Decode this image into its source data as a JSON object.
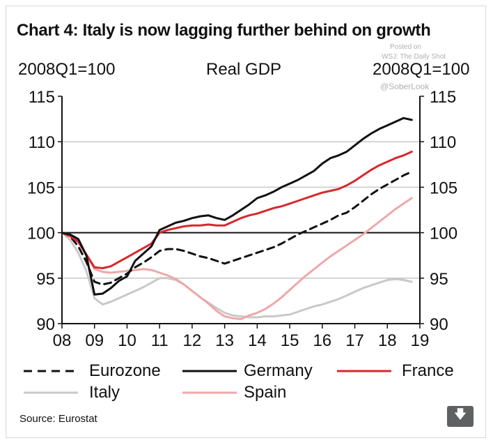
{
  "header": {
    "title": "Chart 4: Italy is now lagging further behind on growth",
    "unit_left": "2008Q1=100",
    "unit_right": "2008Q1=100",
    "chart_label": "Real GDP"
  },
  "watermark": {
    "line1": "Posted on",
    "line2": "WSJ: The Daily Shot",
    "line3": "@SoberLook"
  },
  "footer": {
    "source": "Source: Eurostat",
    "download_icon": "download-icon"
  },
  "chart_data": {
    "type": "line",
    "title": "Real GDP",
    "xlabel": "",
    "ylabel": "2008Q1=100",
    "xlim": [
      2008,
      2019
    ],
    "ylim": [
      90,
      115
    ],
    "x_ticks": [
      "08",
      "09",
      "10",
      "11",
      "12",
      "13",
      "14",
      "15",
      "16",
      "17",
      "18",
      "19"
    ],
    "y_ticks": [
      "90",
      "95",
      "100",
      "105",
      "110",
      "115"
    ],
    "reference_line": 100,
    "grid": true,
    "legend": "bottom",
    "x": [
      2008.0,
      2008.25,
      2008.5,
      2008.75,
      2009.0,
      2009.25,
      2009.5,
      2009.75,
      2010.0,
      2010.25,
      2010.5,
      2010.75,
      2011.0,
      2011.25,
      2011.5,
      2011.75,
      2012.0,
      2012.25,
      2012.5,
      2012.75,
      2013.0,
      2013.25,
      2013.5,
      2013.75,
      2014.0,
      2014.25,
      2014.5,
      2014.75,
      2015.0,
      2015.25,
      2015.5,
      2015.75,
      2016.0,
      2016.25,
      2016.5,
      2016.75,
      2017.0,
      2017.25,
      2017.5,
      2017.75,
      2018.0,
      2018.25,
      2018.5,
      2018.75
    ],
    "series": [
      {
        "name": "Eurozone",
        "color": "#111111",
        "dash": "dashed",
        "values": [
          100.0,
          99.6,
          98.5,
          96.8,
          94.6,
          94.3,
          94.5,
          95.0,
          95.5,
          96.2,
          96.7,
          97.3,
          98.0,
          98.2,
          98.2,
          98.0,
          97.7,
          97.4,
          97.2,
          96.9,
          96.6,
          96.9,
          97.2,
          97.5,
          97.8,
          98.1,
          98.4,
          98.8,
          99.3,
          99.8,
          100.2,
          100.6,
          101.0,
          101.4,
          101.9,
          102.2,
          102.8,
          103.5,
          104.2,
          104.8,
          105.3,
          105.8,
          106.3,
          106.7
        ]
      },
      {
        "name": "Germany",
        "color": "#111111",
        "dash": "solid",
        "values": [
          100.0,
          99.8,
          99.3,
          97.5,
          93.2,
          93.3,
          93.9,
          94.7,
          95.2,
          96.9,
          97.7,
          98.5,
          100.3,
          100.7,
          101.1,
          101.3,
          101.6,
          101.8,
          101.9,
          101.6,
          101.4,
          101.9,
          102.5,
          103.1,
          103.8,
          104.1,
          104.5,
          105.0,
          105.4,
          105.8,
          106.3,
          106.8,
          107.6,
          108.2,
          108.5,
          108.9,
          109.6,
          110.3,
          110.9,
          111.4,
          111.8,
          112.2,
          112.6,
          112.4
        ]
      },
      {
        "name": "France",
        "color": "#d7282d",
        "dash": "solid",
        "values": [
          100.0,
          99.6,
          99.0,
          97.6,
          96.2,
          96.1,
          96.3,
          96.8,
          97.3,
          97.8,
          98.3,
          98.8,
          100.0,
          100.3,
          100.5,
          100.7,
          100.8,
          100.8,
          100.9,
          100.8,
          100.8,
          101.2,
          101.6,
          101.9,
          102.1,
          102.4,
          102.7,
          102.9,
          103.2,
          103.5,
          103.8,
          104.1,
          104.4,
          104.6,
          104.8,
          105.2,
          105.7,
          106.3,
          106.9,
          107.4,
          107.8,
          108.2,
          108.5,
          108.9
        ]
      },
      {
        "name": "Italy",
        "color": "#c9c9c9",
        "dash": "solid",
        "values": [
          100.0,
          99.2,
          97.8,
          95.8,
          92.8,
          92.1,
          92.4,
          92.8,
          93.2,
          93.6,
          94.0,
          94.5,
          95.0,
          95.0,
          94.8,
          94.3,
          93.6,
          92.9,
          92.3,
          91.7,
          91.2,
          90.9,
          90.8,
          90.7,
          90.7,
          90.8,
          90.8,
          90.9,
          91.0,
          91.3,
          91.6,
          91.9,
          92.1,
          92.4,
          92.7,
          93.1,
          93.5,
          93.9,
          94.2,
          94.5,
          94.8,
          94.9,
          94.8,
          94.6
        ]
      },
      {
        "name": "Spain",
        "color": "#eea8a8",
        "dash": "solid",
        "values": [
          100.0,
          99.8,
          99.0,
          97.5,
          96.0,
          95.7,
          95.6,
          95.7,
          95.8,
          95.9,
          96.0,
          95.9,
          95.6,
          95.3,
          94.9,
          94.3,
          93.6,
          92.9,
          92.2,
          91.4,
          90.8,
          90.6,
          90.5,
          90.9,
          91.2,
          91.6,
          92.2,
          92.9,
          93.7,
          94.5,
          95.3,
          96.0,
          96.7,
          97.4,
          98.0,
          98.6,
          99.2,
          99.8,
          100.5,
          101.2,
          101.9,
          102.6,
          103.2,
          103.8
        ]
      }
    ]
  }
}
